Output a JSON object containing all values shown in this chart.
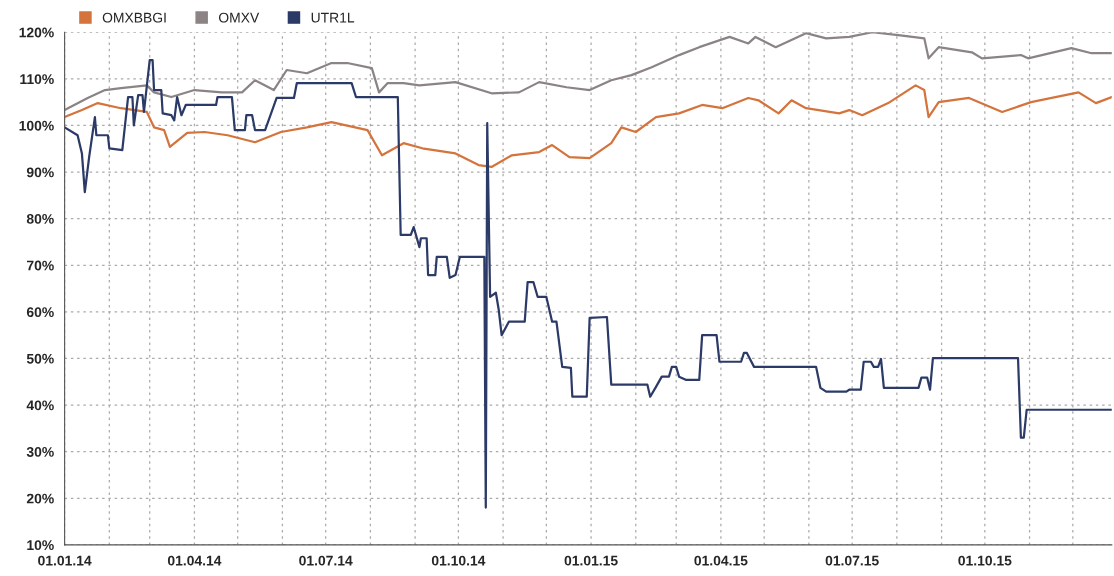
{
  "chart_data": {
    "type": "line",
    "legend": "top left",
    "grid": true,
    "marker": "none",
    "line_style": "solid",
    "xlim": [
      "2014-01-01",
      "2015-12-28"
    ],
    "xticks": [
      {
        "value": "2014-01-01",
        "label": "01.01.14"
      },
      {
        "value": "2014-02-01",
        "label": null
      },
      {
        "value": "2014-03-01",
        "label": null
      },
      {
        "value": "2014-04-01",
        "label": "01.04.14"
      },
      {
        "value": "2014-05-01",
        "label": null
      },
      {
        "value": "2014-06-01",
        "label": null
      },
      {
        "value": "2014-07-01",
        "label": "01.07.14"
      },
      {
        "value": "2014-08-01",
        "label": null
      },
      {
        "value": "2014-09-01",
        "label": null
      },
      {
        "value": "2014-10-01",
        "label": "01.10.14"
      },
      {
        "value": "2014-11-01",
        "label": null
      },
      {
        "value": "2014-12-01",
        "label": null
      },
      {
        "value": "2015-01-01",
        "label": "01.01.15"
      },
      {
        "value": "2015-02-01",
        "label": null
      },
      {
        "value": "2015-03-01",
        "label": null
      },
      {
        "value": "2015-04-01",
        "label": "01.04.15"
      },
      {
        "value": "2015-05-01",
        "label": null
      },
      {
        "value": "2015-06-01",
        "label": null
      },
      {
        "value": "2015-07-01",
        "label": "01.07.15"
      },
      {
        "value": "2015-08-01",
        "label": null
      },
      {
        "value": "2015-09-01",
        "label": null
      },
      {
        "value": "2015-10-01",
        "label": "01.10.15"
      },
      {
        "value": "2015-11-01",
        "label": null
      },
      {
        "value": "2015-12-01",
        "label": null
      }
    ],
    "ylim": [
      10,
      120
    ],
    "yticks": [
      {
        "value": 10,
        "label": "10%"
      },
      {
        "value": 20,
        "label": "20%"
      },
      {
        "value": 30,
        "label": "30%"
      },
      {
        "value": 40,
        "label": "40%"
      },
      {
        "value": 50,
        "label": "50%"
      },
      {
        "value": 60,
        "label": "60%"
      },
      {
        "value": 70,
        "label": "70%"
      },
      {
        "value": 80,
        "label": "80%"
      },
      {
        "value": 90,
        "label": "90%"
      },
      {
        "value": 100,
        "label": "100%"
      },
      {
        "value": 110,
        "label": "110%"
      },
      {
        "value": 120,
        "label": "120%"
      }
    ],
    "series": [
      {
        "name": "OMXBBGI",
        "color": "#d4743c",
        "x": [
          "2014-01-01",
          "2014-01-13",
          "2014-01-24",
          "2014-02-09",
          "2014-02-27",
          "2014-03-04",
          "2014-03-11",
          "2014-03-15",
          "2014-03-27",
          "2014-04-08",
          "2014-04-24",
          "2014-05-13",
          "2014-05-31",
          "2014-06-18",
          "2014-07-05",
          "2014-07-30",
          "2014-08-09",
          "2014-08-24",
          "2014-09-06",
          "2014-09-29",
          "2014-10-15",
          "2014-10-24",
          "2014-11-07",
          "2014-11-26",
          "2014-12-05",
          "2014-12-17",
          "2014-12-31",
          "2015-01-15",
          "2015-01-22",
          "2015-02-01",
          "2015-02-15",
          "2015-03-03",
          "2015-03-19",
          "2015-04-02",
          "2015-04-20",
          "2015-04-27",
          "2015-05-11",
          "2015-05-20",
          "2015-05-30",
          "2015-06-22",
          "2015-06-29",
          "2015-07-08",
          "2015-07-26",
          "2015-08-14",
          "2015-08-20",
          "2015-08-23",
          "2015-08-30",
          "2015-09-20",
          "2015-10-13",
          "2015-11-02",
          "2015-12-05",
          "2015-12-17",
          "2015-12-28"
        ],
        "values": [
          101.8,
          103.3,
          104.8,
          103.7,
          102.9,
          99.6,
          99,
          95.4,
          98.4,
          98.6,
          97.9,
          96.4,
          98.6,
          99.6,
          100.7,
          99,
          93.6,
          96.2,
          95.1,
          94,
          91.5,
          91.1,
          93.6,
          94.3,
          95.8,
          93.2,
          93,
          96.2,
          99.6,
          98.6,
          101.8,
          102.6,
          104.4,
          103.7,
          105.9,
          105.4,
          102.6,
          105.4,
          103.7,
          102.6,
          103.3,
          102.2,
          104.8,
          108.6,
          107.6,
          101.8,
          105,
          105.9,
          102.9,
          105,
          107.1,
          104.8,
          106.1
        ]
      },
      {
        "name": "OMXV",
        "color": "#8c8484",
        "x": [
          "2014-01-01",
          "2014-01-17",
          "2014-01-29",
          "2014-02-09",
          "2014-02-27",
          "2014-03-04",
          "2014-03-16",
          "2014-04-01",
          "2014-04-20",
          "2014-05-04",
          "2014-05-13",
          "2014-05-26",
          "2014-06-04",
          "2014-06-18",
          "2014-07-05",
          "2014-07-16",
          "2014-08-02",
          "2014-08-07",
          "2014-08-13",
          "2014-08-24",
          "2014-09-04",
          "2014-09-29",
          "2014-10-24",
          "2014-11-12",
          "2014-11-26",
          "2014-12-15",
          "2014-12-31",
          "2015-01-15",
          "2015-01-29",
          "2015-02-12",
          "2015-03-03",
          "2015-03-17",
          "2015-04-07",
          "2015-04-20",
          "2015-04-25",
          "2015-05-09",
          "2015-05-30",
          "2015-06-13",
          "2015-06-29",
          "2015-07-15",
          "2015-08-02",
          "2015-08-20",
          "2015-08-23",
          "2015-08-30",
          "2015-09-22",
          "2015-09-29",
          "2015-10-26",
          "2015-10-31",
          "2015-11-30",
          "2015-12-14",
          "2015-12-28"
        ],
        "values": [
          103.3,
          105.9,
          107.6,
          108,
          108.6,
          107.1,
          106.1,
          107.6,
          107.1,
          107.1,
          109.7,
          107.6,
          111.9,
          111.2,
          113.4,
          113.4,
          112.3,
          107.1,
          109.1,
          109.1,
          108.6,
          109.3,
          106.9,
          107.1,
          109.3,
          108.2,
          107.6,
          109.7,
          110.8,
          112.5,
          115.1,
          116.8,
          119,
          117.6,
          119,
          116.8,
          119.8,
          118.7,
          119,
          120,
          119.4,
          118.7,
          114.4,
          116.8,
          115.7,
          114.4,
          115.1,
          114.4,
          116.6,
          115.5,
          115.5
        ]
      },
      {
        "name": "UTR1L",
        "color": "#2b3a67",
        "x": [
          "2014-01-01",
          "2014-01-10",
          "2014-01-13",
          "2014-01-15",
          "2014-01-18",
          "2014-01-22",
          "2014-01-23",
          "2014-01-31",
          "2014-02-01",
          "2014-02-10",
          "2014-02-14",
          "2014-02-17",
          "2014-02-18",
          "2014-02-21",
          "2014-02-24",
          "2014-02-25",
          "2014-03-01",
          "2014-03-03",
          "2014-03-04",
          "2014-03-09",
          "2014-03-10",
          "2014-03-16",
          "2014-03-18",
          "2014-03-20",
          "2014-03-23",
          "2014-03-26",
          "2014-04-16",
          "2014-04-17",
          "2014-04-27",
          "2014-04-29",
          "2014-05-06",
          "2014-05-07",
          "2014-05-11",
          "2014-05-13",
          "2014-05-20",
          "2014-05-28",
          "2014-06-09",
          "2014-06-11",
          "2014-07-19",
          "2014-07-22",
          "2014-08-20",
          "2014-08-22",
          "2014-08-29",
          "2014-08-31",
          "2014-09-04",
          "2014-09-05",
          "2014-09-09",
          "2014-09-10",
          "2014-09-15",
          "2014-09-16",
          "2014-09-23",
          "2014-09-25",
          "2014-09-29",
          "2014-10-02",
          "2014-10-19",
          "2014-10-20",
          "2014-10-21",
          "2014-10-23",
          "2014-10-27",
          "2014-10-29",
          "2014-10-31",
          "2014-11-05",
          "2014-11-16",
          "2014-11-18",
          "2014-11-22",
          "2014-11-25",
          "2014-12-01",
          "2014-12-05",
          "2014-12-08",
          "2014-12-12",
          "2014-12-18",
          "2014-12-19",
          "2014-12-29",
          "2014-12-31",
          "2015-01-12",
          "2015-01-15",
          "2015-02-09",
          "2015-02-11",
          "2015-02-15",
          "2015-02-19",
          "2015-02-24",
          "2015-02-26",
          "2015-03-01",
          "2015-03-03",
          "2015-03-08",
          "2015-03-17",
          "2015-03-19",
          "2015-03-29",
          "2015-03-31",
          "2015-04-15",
          "2015-04-17",
          "2015-04-19",
          "2015-04-24",
          "2015-06-06",
          "2015-06-09",
          "2015-06-13",
          "2015-06-27",
          "2015-06-29",
          "2015-07-07",
          "2015-07-09",
          "2015-07-14",
          "2015-07-16",
          "2015-07-19",
          "2015-07-21",
          "2015-07-23",
          "2015-08-16",
          "2015-08-18",
          "2015-08-22",
          "2015-08-24",
          "2015-08-26",
          "2015-10-24",
          "2015-10-26",
          "2015-10-28",
          "2015-10-30",
          "2015-12-28"
        ],
        "values": [
          99.6,
          97.9,
          94,
          85.7,
          93.2,
          101.8,
          97.9,
          97.9,
          95.1,
          94.7,
          106.1,
          106.1,
          100,
          106.5,
          106.5,
          102.9,
          114,
          114,
          107.6,
          107.6,
          102.6,
          102.2,
          101.1,
          106.1,
          102.2,
          104.4,
          104.4,
          106.1,
          106.1,
          99,
          99,
          102.2,
          102.2,
          99,
          99,
          105.9,
          105.9,
          109.1,
          109.1,
          106.1,
          106.1,
          76.5,
          76.5,
          78.2,
          73.9,
          75.8,
          75.8,
          67.9,
          67.9,
          71.8,
          71.8,
          67.3,
          67.9,
          71.8,
          71.8,
          18,
          100.5,
          63.2,
          64.1,
          60.4,
          55,
          57.9,
          57.9,
          66.4,
          66.4,
          63.2,
          63.2,
          57.9,
          57.9,
          48.2,
          48,
          41.8,
          41.8,
          58.7,
          58.9,
          44.4,
          44.4,
          41.8,
          43.9,
          46.1,
          46.1,
          48.2,
          48.2,
          46.1,
          45.4,
          45.4,
          55,
          55,
          49.3,
          49.3,
          51.2,
          51.2,
          48.2,
          48.2,
          43.7,
          42.9,
          42.9,
          43.3,
          43.3,
          49.3,
          49.3,
          48.2,
          48.2,
          49.9,
          43.7,
          43.7,
          45.9,
          45.9,
          43.3,
          50.1,
          50.1,
          33,
          33,
          39,
          39
        ]
      }
    ]
  }
}
